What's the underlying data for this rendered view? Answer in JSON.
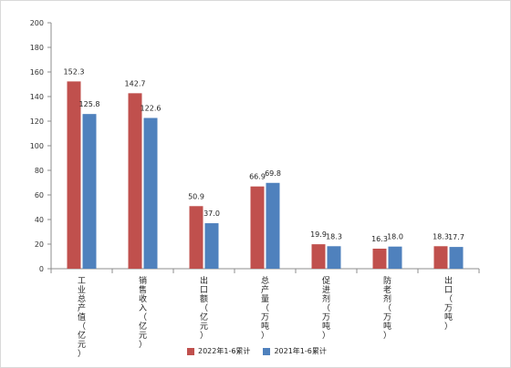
{
  "chart_data": {
    "type": "bar",
    "categories": [
      "工业总产值（亿元）",
      "销售收入（亿元）",
      "出口额（亿元）",
      "总产量（万吨）",
      "促进剂（万吨）",
      "防老剂（万吨）",
      "出口（万吨）"
    ],
    "series": [
      {
        "name": "2022年1-6累计",
        "values": [
          152.3,
          142.7,
          50.9,
          66.9,
          19.9,
          16.3,
          18.3
        ],
        "color": "#C0504D"
      },
      {
        "name": "2021年1-6累计",
        "values": [
          125.8,
          122.6,
          37.0,
          69.8,
          18.3,
          18.0,
          17.7
        ],
        "color": "#4F81BD"
      }
    ],
    "data_labels": [
      [
        "152.3",
        "142.7",
        "50.9",
        "66.9",
        "19.9",
        "16.3",
        "18.3"
      ],
      [
        "125.8",
        "122.6",
        "37.0",
        "69.8",
        "18.3",
        "18.0",
        "17.7"
      ]
    ],
    "ylim": [
      0,
      200
    ],
    "yticks": [
      0,
      20,
      40,
      60,
      80,
      100,
      120,
      140,
      160,
      180,
      200
    ],
    "grid": false,
    "legend_position": "bottom"
  },
  "legend": {
    "series_a": "2022年1-6累计",
    "series_b": "2021年1-6累计"
  }
}
